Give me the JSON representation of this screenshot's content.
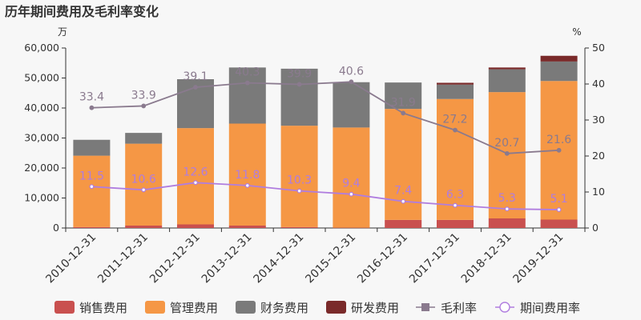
{
  "chart_data": {
    "type": "bar",
    "title": "历年期间费用及毛利率变化",
    "y_left_unit": "万",
    "y_right_unit": "%",
    "ylim_left": [
      0,
      60000
    ],
    "ylim_right": [
      0,
      50
    ],
    "categories": [
      "2010-12-31",
      "2011-12-31",
      "2012-12-31",
      "2013-12-31",
      "2014-12-31",
      "2015-12-31",
      "2016-12-31",
      "2017-12-31",
      "2018-12-31",
      "2019-12-31"
    ],
    "series": [
      {
        "name": "销售费用",
        "type": "bar",
        "color": "#c9504f",
        "values": [
          300,
          800,
          1200,
          800,
          300,
          100,
          2700,
          2700,
          3200,
          2800
        ]
      },
      {
        "name": "管理费用",
        "type": "bar",
        "color": "#f59745",
        "values": [
          23800,
          27300,
          32100,
          34000,
          33800,
          33400,
          37000,
          40300,
          42100,
          46200
        ]
      },
      {
        "name": "财务费用",
        "type": "bar",
        "color": "#7a7a7a",
        "values": [
          5300,
          3600,
          16300,
          18700,
          19000,
          15100,
          8800,
          4800,
          7600,
          6500
        ]
      },
      {
        "name": "研发费用",
        "type": "bar",
        "color": "#7a2a2a",
        "values": [
          0,
          0,
          0,
          0,
          0,
          0,
          0,
          600,
          600,
          1900
        ]
      },
      {
        "name": "毛利率",
        "type": "line",
        "color": "#8a7a8e",
        "values": [
          33.4,
          33.9,
          39.1,
          40.3,
          39.9,
          40.6,
          31.9,
          27.2,
          20.7,
          21.6
        ]
      },
      {
        "name": "期间费用率",
        "type": "line",
        "color": "#b07ddf",
        "values": [
          11.5,
          10.6,
          12.6,
          11.8,
          10.3,
          9.4,
          7.4,
          6.3,
          5.3,
          5.1
        ]
      }
    ],
    "left_ticks": [
      "0",
      "10,000",
      "20,000",
      "30,000",
      "40,000",
      "50,000",
      "60,000"
    ],
    "right_ticks": [
      "0",
      "10",
      "20",
      "30",
      "40",
      "50"
    ]
  }
}
